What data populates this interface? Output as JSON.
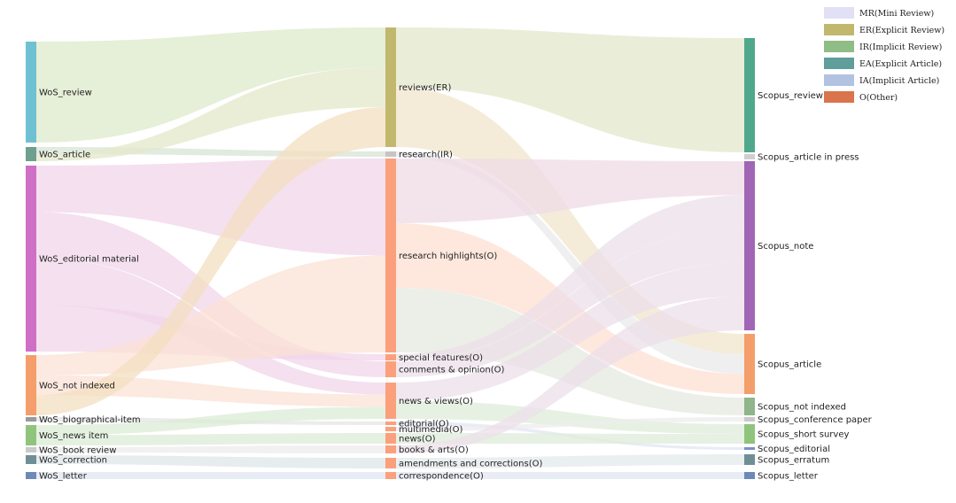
{
  "legend": [
    {
      "label": "MR(Mini Review)",
      "color": "#e1e0f5"
    },
    {
      "label": "ER(Explicit Review)",
      "color": "#c1b86e"
    },
    {
      "label": "IR(Implicit Review)",
      "color": "#8fbd86"
    },
    {
      "label": "EA(Explicit Article)",
      "color": "#5f9e9a"
    },
    {
      "label": "IA(Implicit Article)",
      "color": "#b1c3e0"
    },
    {
      "label": "O(Other)",
      "color": "#d9744c"
    }
  ],
  "columns": {
    "left": [
      {
        "id": "L_review",
        "label": "WoS_review",
        "color": "#6ec1d2"
      },
      {
        "id": "L_article",
        "label": "WoS_article",
        "color": "#6f9f8e"
      },
      {
        "id": "L_edit",
        "label": "WoS_editorial material",
        "color": "#cf6fc6"
      },
      {
        "id": "L_notidx",
        "label": "WoS_not indexed",
        "color": "#f49e6b"
      },
      {
        "id": "L_bio",
        "label": "WoS_biographical-item",
        "color": "#9a9a9a"
      },
      {
        "id": "L_news",
        "label": "WoS_news item",
        "color": "#8fc47d"
      },
      {
        "id": "L_book",
        "label": "WoS_book review",
        "color": "#c9c9c9"
      },
      {
        "id": "L_corr",
        "label": "WoS_correction",
        "color": "#6f8f95"
      },
      {
        "id": "L_letter",
        "label": "WoS_letter",
        "color": "#6d8ab7"
      }
    ],
    "middle": [
      {
        "id": "M_reviews",
        "label": "reviews(ER)",
        "color": "#c1b86e"
      },
      {
        "id": "M_research",
        "label": "research(IR)",
        "color": "#c5c5c5"
      },
      {
        "id": "M_highlights",
        "label": "research highlights(O)",
        "color": "#fba07c"
      },
      {
        "id": "M_special",
        "label": "special features(O)",
        "color": "#fba07c"
      },
      {
        "id": "M_comments",
        "label": "comments & opinion(O)",
        "color": "#fba07c"
      },
      {
        "id": "M_newsviews",
        "label": "news & views(O)",
        "color": "#fba07c"
      },
      {
        "id": "M_editorial",
        "label": "editorial(O)",
        "color": "#fba07c"
      },
      {
        "id": "M_multimedia",
        "label": "multimedia(O)",
        "color": "#fba07c"
      },
      {
        "id": "M_news",
        "label": "news(O)",
        "color": "#fba07c"
      },
      {
        "id": "M_books",
        "label": "books & arts(O)",
        "color": "#fba07c"
      },
      {
        "id": "M_amend",
        "label": "amendments and corrections(O)",
        "color": "#fba07c"
      },
      {
        "id": "M_corresp",
        "label": "correspondence(O)",
        "color": "#fba07c"
      }
    ],
    "right": [
      {
        "id": "R_review",
        "label": "Scopus_review",
        "color": "#4fa88c"
      },
      {
        "id": "R_press",
        "label": "Scopus_article in press",
        "color": "#cfcfcf"
      },
      {
        "id": "R_note",
        "label": "Scopus_note",
        "color": "#a066b5"
      },
      {
        "id": "R_article",
        "label": "Scopus_article",
        "color": "#f49e6b"
      },
      {
        "id": "R_notidx",
        "label": "Scopus_not indexed",
        "color": "#8fb58b"
      },
      {
        "id": "R_conf",
        "label": "Scopus_conference paper",
        "color": "#c9c9c9"
      },
      {
        "id": "R_survey",
        "label": "Scopus_short survey",
        "color": "#8fc47d"
      },
      {
        "id": "R_editorial",
        "label": "Scopus_editorial",
        "color": "#7c8fc8"
      },
      {
        "id": "R_erratum",
        "label": "Scopus_erratum",
        "color": "#6f8f95"
      },
      {
        "id": "R_letter",
        "label": "Scopus_letter",
        "color": "#6d8ab7"
      }
    ]
  },
  "flows": [
    {
      "source": "L_review",
      "target": "M_reviews",
      "color": "#dde9c9"
    },
    {
      "source": "L_article",
      "target": "M_research",
      "color": "#d7e4d4"
    },
    {
      "source": "L_article",
      "target": "M_reviews",
      "color": "#e4e8c9"
    },
    {
      "source": "L_edit",
      "target": "M_highlights",
      "color": "#f1d6e9"
    },
    {
      "source": "L_edit",
      "target": "M_comments",
      "color": "#f1d6e9"
    },
    {
      "source": "L_edit",
      "target": "M_newsviews",
      "color": "#f1d6e9"
    },
    {
      "source": "L_edit",
      "target": "M_special",
      "color": "#f1d6e9"
    },
    {
      "source": "L_notidx",
      "target": "M_highlights",
      "color": "#fbe2d4"
    },
    {
      "source": "L_notidx",
      "target": "M_newsviews",
      "color": "#fbe2d4"
    },
    {
      "source": "L_notidx",
      "target": "M_reviews",
      "color": "#f3dfc0"
    },
    {
      "source": "L_bio",
      "target": "M_editorial",
      "color": "#e6e6e6"
    },
    {
      "source": "L_news",
      "target": "M_newsviews",
      "color": "#dcecd5"
    },
    {
      "source": "L_news",
      "target": "M_news",
      "color": "#dcecd5"
    },
    {
      "source": "L_book",
      "target": "M_books",
      "color": "#ececec"
    },
    {
      "source": "L_corr",
      "target": "M_amend",
      "color": "#dfe5e8"
    },
    {
      "source": "L_letter",
      "target": "M_corresp",
      "color": "#e0e6f0"
    },
    {
      "source": "M_reviews",
      "target": "R_review",
      "color": "#e3e8cc"
    },
    {
      "source": "M_reviews",
      "target": "R_article",
      "color": "#f0e6cc"
    },
    {
      "source": "M_research",
      "target": "R_article",
      "color": "#e9e9e9"
    },
    {
      "source": "M_highlights",
      "target": "R_note",
      "color": "#efdbe6"
    },
    {
      "source": "M_highlights",
      "target": "R_article",
      "color": "#fde0d2"
    },
    {
      "source": "M_highlights",
      "target": "R_notidx",
      "color": "#e5eadf"
    },
    {
      "source": "M_special",
      "target": "R_note",
      "color": "#ecdfea"
    },
    {
      "source": "M_comments",
      "target": "R_note",
      "color": "#ecdfea"
    },
    {
      "source": "M_newsviews",
      "target": "R_note",
      "color": "#ecdfea"
    },
    {
      "source": "M_newsviews",
      "target": "R_survey",
      "color": "#dfecd9"
    },
    {
      "source": "M_editorial",
      "target": "R_editorial",
      "color": "#e2e6f3"
    },
    {
      "source": "M_multimedia",
      "target": "R_conf",
      "color": "#ececec"
    },
    {
      "source": "M_news",
      "target": "R_survey",
      "color": "#dfecd9"
    },
    {
      "source": "M_books",
      "target": "R_note",
      "color": "#ecdfea"
    },
    {
      "source": "M_amend",
      "target": "R_erratum",
      "color": "#e3e9eb"
    },
    {
      "source": "M_corresp",
      "target": "R_letter",
      "color": "#e0e6f0"
    }
  ]
}
